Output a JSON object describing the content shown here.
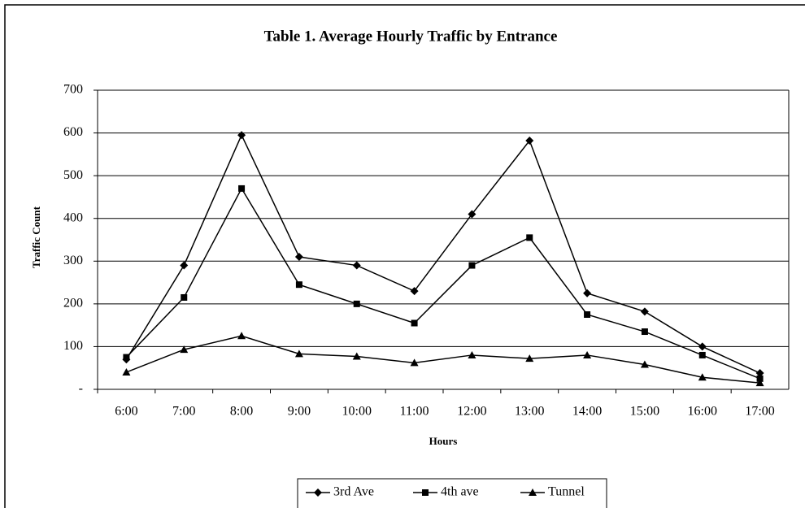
{
  "chart_data": {
    "type": "line",
    "title": "Table 1.  Average Hourly Traffic by Entrance",
    "x_label": "Hours",
    "y_label": "Traffic Count",
    "categories": [
      "6:00",
      "7:00",
      "8:00",
      "9:00",
      "10:00",
      "11:00",
      "12:00",
      "13:00",
      "14:00",
      "15:00",
      "16:00",
      "17:00"
    ],
    "series": [
      {
        "name": "3rd Ave",
        "color": "#000000",
        "marker": "diamond",
        "values": [
          70,
          290,
          595,
          310,
          290,
          230,
          410,
          582,
          225,
          182,
          100,
          38
        ]
      },
      {
        "name": "4th ave",
        "color": "#000000",
        "marker": "square",
        "values": [
          75,
          215,
          470,
          245,
          200,
          155,
          290,
          355,
          175,
          135,
          80,
          25
        ]
      },
      {
        "name": "Tunnel",
        "color": "#000000",
        "marker": "triangle",
        "values": [
          40,
          93,
          125,
          83,
          77,
          62,
          80,
          72,
          80,
          58,
          28,
          15
        ]
      }
    ],
    "ylim": [
      0,
      700
    ],
    "yticks": [
      {
        "value": 0,
        "label": "-"
      },
      100,
      200,
      300,
      400,
      500,
      600,
      700
    ],
    "grid": true,
    "legend": "bottom"
  }
}
